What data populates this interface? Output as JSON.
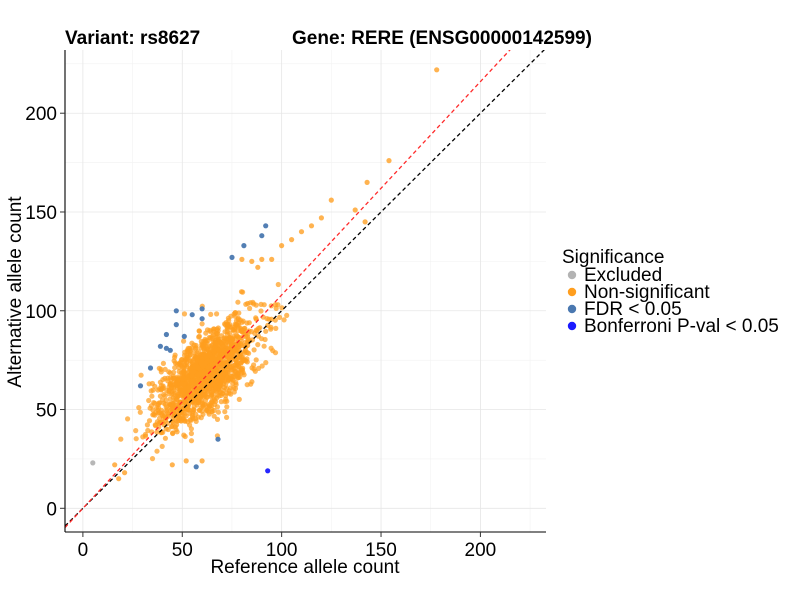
{
  "chart_data": {
    "type": "scatter",
    "title_variant": "Variant: rs8627",
    "title_gene": "Gene: RERE (ENSG00000142599)",
    "xlabel": "Reference allele count",
    "ylabel": "Alternative allele count",
    "xlim": [
      -9,
      233
    ],
    "ylim": [
      -12,
      232
    ],
    "x_ticks": [
      0,
      50,
      100,
      150,
      200
    ],
    "y_ticks": [
      0,
      50,
      100,
      150,
      200
    ],
    "x_tick_labels": [
      "0",
      "50",
      "100",
      "150",
      "200"
    ],
    "y_tick_labels": [
      "0",
      "50",
      "100",
      "150",
      "200"
    ],
    "grid": true,
    "legend_position": "right",
    "legend": {
      "title": "Significance",
      "entries": [
        {
          "label": "Excluded",
          "color": "#b3b3b3"
        },
        {
          "label": "Non-significant",
          "color": "#ff9e1f"
        },
        {
          "label": "FDR < 0.05",
          "color": "#4a78b0"
        },
        {
          "label": "Bonferroni P-val < 0.05",
          "color": "#1a1aff"
        }
      ]
    },
    "reference_lines": [
      {
        "name": "identity",
        "slope": 1.0,
        "intercept": 0,
        "color": "#000000",
        "style": "dashed"
      },
      {
        "name": "fitted",
        "slope": 1.08,
        "intercept": 0,
        "color": "#ff2a2a",
        "style": "dashed"
      }
    ],
    "cloud_parameters": {
      "points": 1400,
      "mean_ref": 62,
      "mean_alt": 68,
      "sd_major": 17,
      "sd_minor": 7.5,
      "angle_deg": 47
    },
    "series": [
      {
        "name": "Excluded",
        "color": "#b3b3b3",
        "points": [
          [
            5,
            23
          ]
        ]
      },
      {
        "name": "Non-significant outliers",
        "color": "#ff9e1f",
        "points": [
          [
            178,
            222
          ],
          [
            154,
            176
          ],
          [
            143,
            165
          ],
          [
            125,
            156
          ],
          [
            137,
            151
          ],
          [
            120,
            147
          ],
          [
            115,
            143
          ],
          [
            110,
            140
          ],
          [
            105,
            136
          ],
          [
            100,
            133
          ],
          [
            142,
            145
          ],
          [
            95,
            126
          ],
          [
            90,
            126
          ],
          [
            88,
            122
          ],
          [
            18,
            15
          ],
          [
            21,
            18
          ],
          [
            16,
            22
          ],
          [
            45,
            22
          ],
          [
            52,
            24
          ],
          [
            60,
            24
          ],
          [
            80,
            126
          ],
          [
            85,
            125
          ]
        ]
      },
      {
        "name": "FDR < 0.05",
        "color": "#4a78b0",
        "points": [
          [
            92,
            143
          ],
          [
            90,
            138
          ],
          [
            81,
            133
          ],
          [
            75,
            127
          ],
          [
            55,
            98
          ],
          [
            60,
            96
          ],
          [
            47,
            93
          ],
          [
            60,
            101
          ],
          [
            42,
            88
          ],
          [
            51,
            87
          ],
          [
            39,
            82
          ],
          [
            42,
            81
          ],
          [
            44,
            80
          ],
          [
            34,
            71
          ],
          [
            29,
            62
          ],
          [
            68,
            35
          ],
          [
            57,
            21
          ],
          [
            47,
            100
          ]
        ]
      },
      {
        "name": "Bonferroni P-val < 0.05",
        "color": "#1a1aff",
        "points": [
          [
            93,
            19
          ]
        ]
      }
    ]
  }
}
